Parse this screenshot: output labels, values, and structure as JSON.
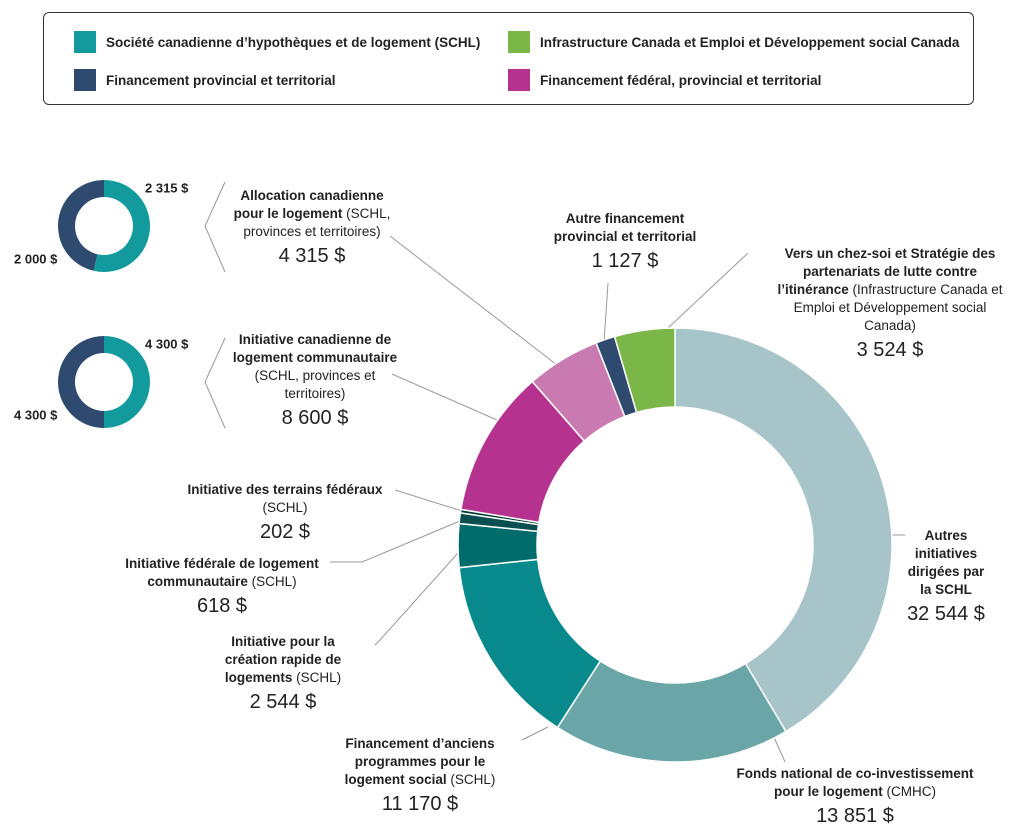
{
  "chart_data": [
    {
      "type": "donut",
      "legend": [
        {
          "name": "Société canadienne d’hypothèques et de logement (SCHL)",
          "color": "#139a9c"
        },
        {
          "name": "Infrastructure Canada et Emploi et Développement social Canada",
          "color": "#7ab648"
        },
        {
          "name": "Financement provincial et territorial",
          "color": "#2e4a6e"
        },
        {
          "name": "Financement fédéral, provincial et territorial",
          "color": "#b5338f"
        }
      ],
      "segments": [
        {
          "label": "Autres initiatives dirigées par la SCHL",
          "value": 32544,
          "value_label": "32 544 $",
          "color": "#a7c4c8"
        },
        {
          "label": "Fonds national de co-investissement pour le logement",
          "note": "(CMHC)",
          "value": 13851,
          "value_label": "13 851 $",
          "color": "#6aa6a8"
        },
        {
          "label": "Financement d’anciens programmes pour le logement social",
          "note": "(SCHL)",
          "value": 11170,
          "value_label": "11 170 $",
          "color": "#088a8c"
        },
        {
          "label": "Initiative pour la création rapide de logements",
          "note": "(SCHL)",
          "value": 2544,
          "value_label": "2 544 $",
          "color": "#006b6b"
        },
        {
          "label": "Initiative fédérale de logement communautaire",
          "note": "(SCHL)",
          "value": 618,
          "value_label": "618 $",
          "color": "#0a4f4f"
        },
        {
          "label": "Initiative des terrains fédéraux",
          "note": "(SCHL)",
          "value": 202,
          "value_label": "202 $",
          "color": "#063c3c"
        },
        {
          "label": "Initiative canadienne de logement communautaire",
          "note": "(SCHL, provinces et territoires)",
          "value": 8600,
          "value_label": "8 600 $",
          "color": "#b5338f"
        },
        {
          "label": "Allocation canadienne pour le logement",
          "note": "(SCHL, provinces et territoires)",
          "value": 4315,
          "value_label": "4 315 $",
          "color": "#c97ab0"
        },
        {
          "label": "Autre financement provincial et territorial",
          "value": 1127,
          "value_label": "1 127 $",
          "color": "#2e4a6e"
        },
        {
          "label": "Vers un chez-soi et Stratégie des partenariats de lutte contre l’itinérance",
          "note": "(Infrastructure Canada et Emploi et Développement social Canada)",
          "value": 3524,
          "value_label": "3 524 $",
          "color": "#7ab648"
        }
      ]
    },
    {
      "type": "donut",
      "values": [
        2315,
        2000
      ],
      "value_labels": [
        "2 315 $",
        "2 000 $"
      ],
      "colors": [
        "#139a9c",
        "#2e4a6e"
      ]
    },
    {
      "type": "donut",
      "values": [
        4300,
        4300
      ],
      "value_labels": [
        "4 300 $",
        "4 300 $"
      ],
      "colors": [
        "#139a9c",
        "#2e4a6e"
      ]
    }
  ]
}
